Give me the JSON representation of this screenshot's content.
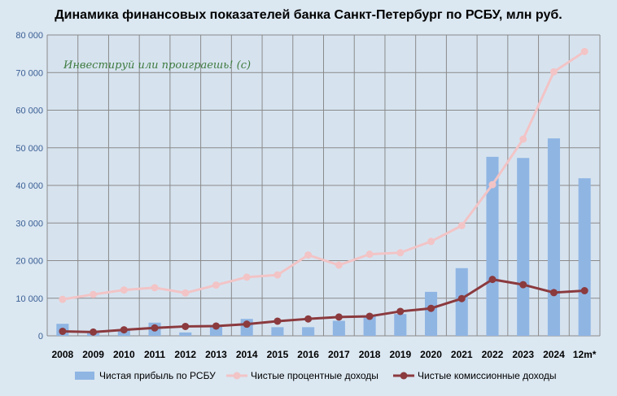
{
  "chart_data": {
    "type": "bar",
    "title": "Динамика финансовых показателей банка Санкт-Петербург по РСБУ, млн руб.",
    "watermark": "Инвестируй или проиграешь! (с)",
    "categories": [
      "2008",
      "2009",
      "2010",
      "2011",
      "2012",
      "2013",
      "2014",
      "2015",
      "2016",
      "2017",
      "2018",
      "2019",
      "2020",
      "2021",
      "2022",
      "2023",
      "2024",
      "12m*"
    ],
    "ylim": [
      0,
      80000
    ],
    "yticks": [
      0,
      10000,
      20000,
      30000,
      40000,
      50000,
      60000,
      70000,
      80000
    ],
    "ytick_labels": [
      "0",
      "10 000",
      "20 000",
      "30 000",
      "40 000",
      "50 000",
      "60 000",
      "70 000",
      "80 000"
    ],
    "grid": true,
    "legend_position": "bottom",
    "series": [
      {
        "name": "Чистая прибыль по РСБУ",
        "kind": "bar",
        "color": "#8fb5e3",
        "values": [
          3200,
          800,
          1500,
          3500,
          900,
          2500,
          4500,
          2300,
          2300,
          4000,
          5300,
          5800,
          11700,
          18000,
          47600,
          47300,
          52500,
          41900
        ]
      },
      {
        "name": "Чистые процентные доходы",
        "kind": "line",
        "color": "#f2c4c6",
        "values": [
          9700,
          11000,
          12200,
          12800,
          11400,
          13500,
          15600,
          16200,
          21500,
          18800,
          21700,
          22100,
          25100,
          29300,
          40200,
          52300,
          70200,
          75600
        ]
      },
      {
        "name": "Чистые комиссионные доходы",
        "kind": "line",
        "color": "#8b3a3e",
        "values": [
          1200,
          1000,
          1600,
          2100,
          2500,
          2600,
          3100,
          3900,
          4500,
          5000,
          5200,
          6500,
          7300,
          9900,
          15000,
          13600,
          11500,
          12000
        ]
      }
    ]
  }
}
